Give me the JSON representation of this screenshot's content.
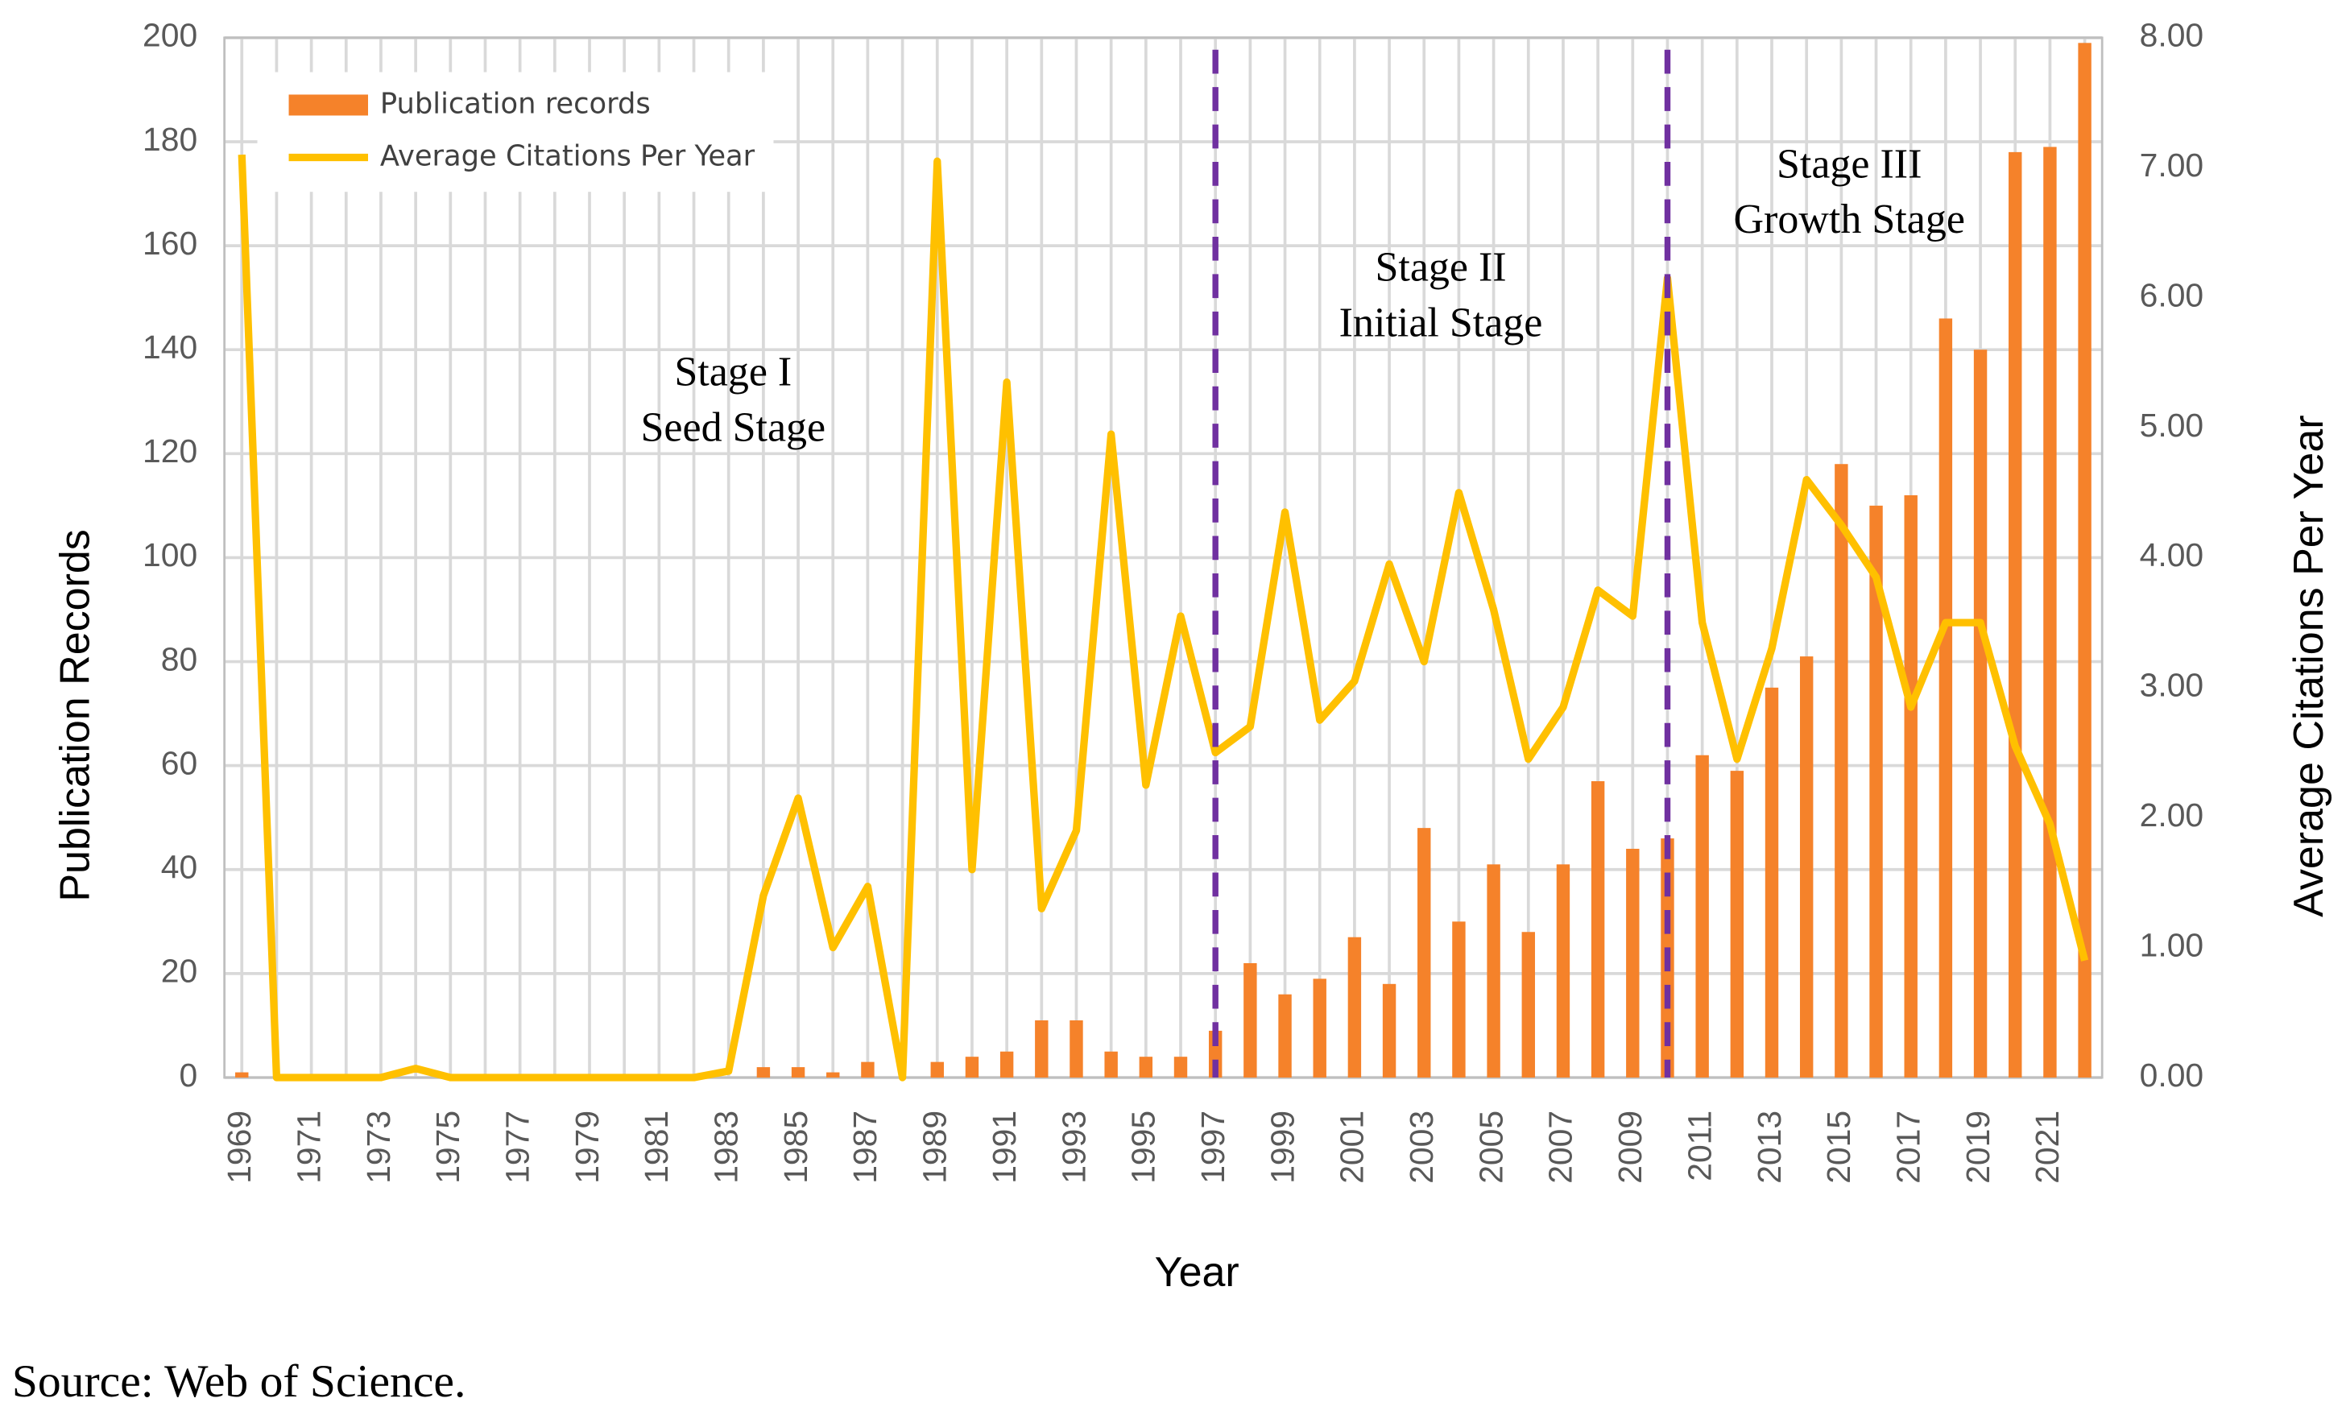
{
  "chart_data": {
    "type": "bar-line",
    "x": [
      1969,
      1970,
      1971,
      1972,
      1973,
      1974,
      1975,
      1976,
      1977,
      1978,
      1979,
      1980,
      1981,
      1982,
      1983,
      1984,
      1985,
      1986,
      1987,
      1988,
      1989,
      1990,
      1991,
      1992,
      1993,
      1994,
      1995,
      1996,
      1997,
      1998,
      1999,
      2000,
      2001,
      2002,
      2003,
      2004,
      2005,
      2006,
      2007,
      2008,
      2009,
      2010,
      2011,
      2012,
      2013,
      2014,
      2015,
      2016,
      2017,
      2018,
      2019,
      2020,
      2021,
      2022
    ],
    "xlim": [
      1968.5,
      2022.5
    ],
    "xticks": [
      1969,
      1971,
      1973,
      1975,
      1977,
      1979,
      1981,
      1983,
      1985,
      1987,
      1989,
      1991,
      1993,
      1995,
      1997,
      1999,
      2001,
      2003,
      2005,
      2007,
      2009,
      2011,
      2013,
      2015,
      2017,
      2019,
      2021
    ],
    "series": [
      {
        "name": "Publication records",
        "color": "#f5822a",
        "values": [
          1,
          0,
          0,
          0,
          0,
          0,
          0,
          0,
          0,
          0,
          0,
          0,
          0,
          0,
          0,
          2,
          2,
          1,
          3,
          0,
          3,
          4,
          5,
          11,
          11,
          5,
          4,
          4,
          9,
          22,
          16,
          19,
          27,
          18,
          48,
          30,
          41,
          28,
          41,
          57,
          44,
          46,
          62,
          59,
          75,
          81,
          118,
          110,
          112,
          146,
          140,
          178,
          179,
          199
        ]
      },
      {
        "name": "Average Citations Per Year",
        "color": "#ffc000",
        "axis": "y2",
        "values": [
          7.1,
          0,
          0,
          0,
          0,
          0.07,
          0,
          0,
          0,
          0,
          0,
          0,
          0,
          0,
          0.05,
          1.4,
          2.15,
          1.0,
          1.47,
          0,
          7.05,
          1.6,
          5.35,
          1.3,
          1.9,
          4.95,
          2.25,
          3.55,
          2.5,
          2.7,
          4.35,
          2.75,
          3.05,
          3.95,
          3.2,
          4.5,
          3.6,
          2.45,
          2.85,
          3.75,
          3.55,
          6.15,
          3.5,
          2.45,
          3.3,
          4.6,
          4.25,
          3.85,
          2.85,
          3.5,
          3.5,
          2.55,
          1.95,
          0.9
        ]
      }
    ],
    "ylim": [
      0,
      200
    ],
    "yticks": [
      0,
      20,
      40,
      60,
      80,
      100,
      120,
      140,
      160,
      180,
      200
    ],
    "y2lim": [
      0,
      8
    ],
    "y2ticks": [
      {
        "value": 0,
        "label": "0.00"
      },
      {
        "value": 1,
        "label": "1.00"
      },
      {
        "value": 2,
        "label": "2.00"
      },
      {
        "value": 3,
        "label": "3.00"
      },
      {
        "value": 4,
        "label": "4.00"
      },
      {
        "value": 5,
        "label": "5.00"
      },
      {
        "value": 6,
        "label": "6.00"
      },
      {
        "value": 7,
        "label": "7.00"
      },
      {
        "value": 8,
        "label": "8.00"
      }
    ],
    "xlabel": "Year",
    "ylabel": "Publication Records",
    "y2label": "Average Citations Per Year",
    "vlines": [
      1997,
      2010
    ],
    "vline_color": "#7030a0",
    "annotations": [
      [
        "Stage I",
        "Seed Stage"
      ],
      [
        "Stage II",
        "Initial Stage"
      ],
      [
        "Stage III",
        "Growth Stage"
      ]
    ],
    "grid": true,
    "legend": "upper left"
  },
  "caption": "Source: Web of Science."
}
